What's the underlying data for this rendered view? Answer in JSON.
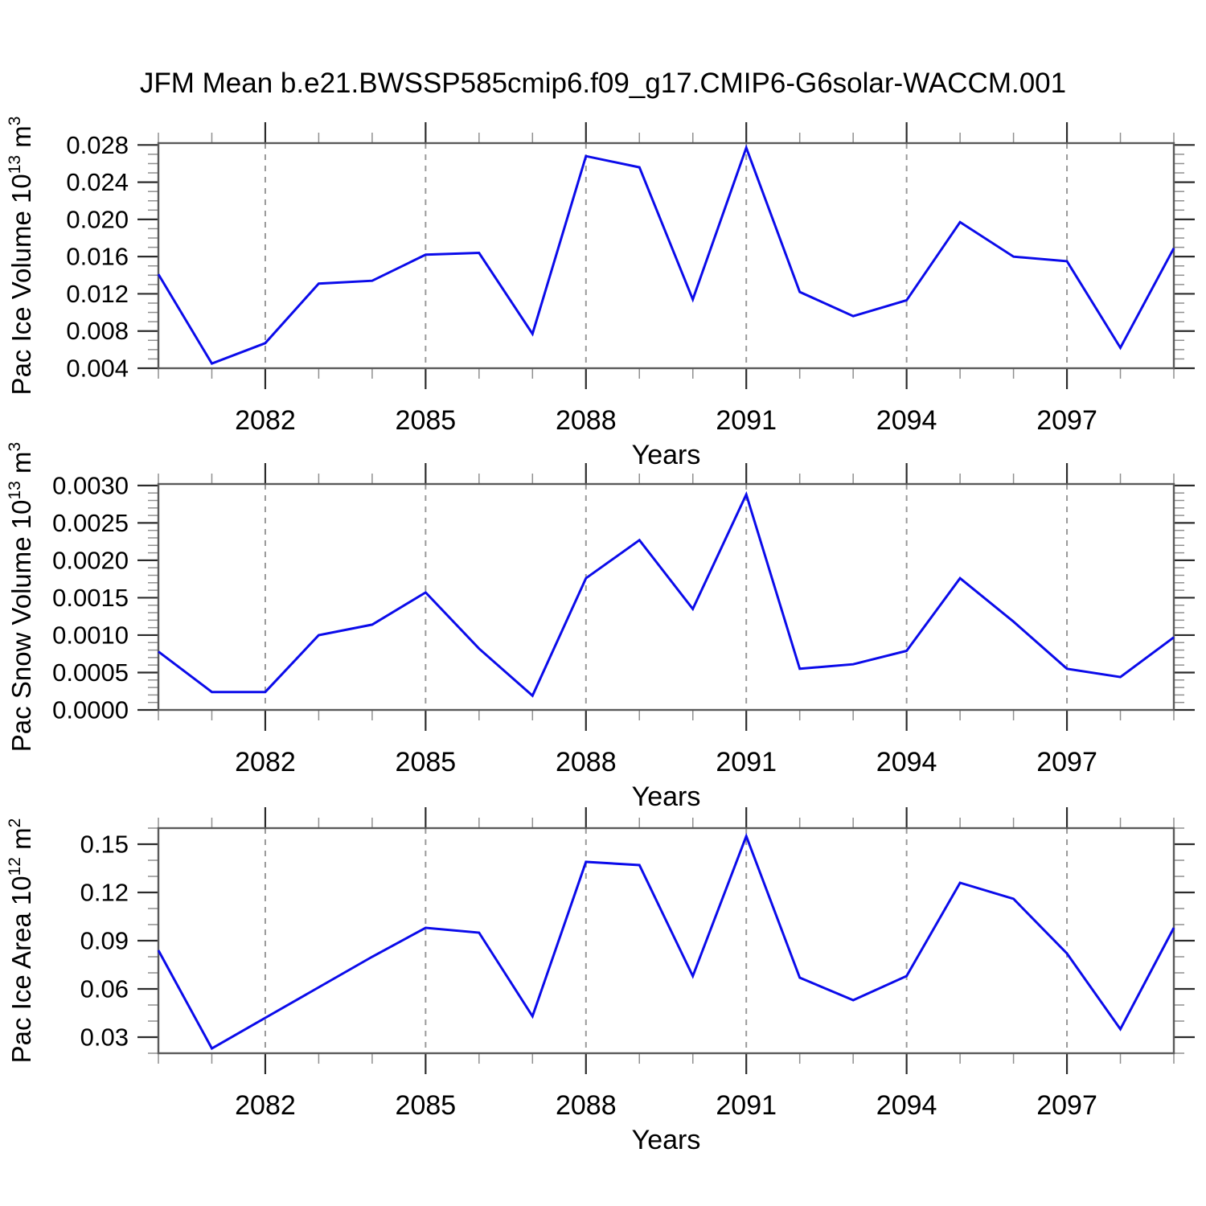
{
  "title": "JFM Mean b.e21.BWSSP585cmip6.f09_g17.CMIP6-G6solar-WACCM.001",
  "theme": {
    "line_color": "#0b0bea",
    "frame_color": "#5a5a5a",
    "major_tick_color": "#2b2b2b",
    "minor_tick_color": "#8f8f8f",
    "grid_color": "#999999",
    "text_color": "#000000",
    "background": "#ffffff"
  },
  "chart_data": {
    "type": "line",
    "x": [
      2080,
      2081,
      2082,
      2083,
      2084,
      2085,
      2086,
      2087,
      2088,
      2089,
      2090,
      2091,
      2092,
      2093,
      2094,
      2095,
      2096,
      2097,
      2098,
      2099
    ],
    "xlim": [
      2080,
      2099
    ],
    "xlabel": "Years",
    "x_major_ticks": [
      2082,
      2085,
      2088,
      2091,
      2094,
      2097
    ],
    "x_major_tick_labels": [
      "2082",
      "2085",
      "2088",
      "2091",
      "2094",
      "2097"
    ],
    "x_minor_step": 1,
    "grid": "vertical dashed gridlines at major x ticks",
    "legend": "none",
    "title": "JFM Mean b.e21.BWSSP585cmip6.f09_g17.CMIP6-G6solar-WACCM.001",
    "panels": [
      {
        "name": "pac-ice-volume",
        "ylabel": "Pac Ice Volume 10^13 m^3",
        "ylabel_segments": [
          {
            "t": "Pac Ice Volume 10"
          },
          {
            "t": "13",
            "sup": true
          },
          {
            "t": " m"
          },
          {
            "t": "3",
            "sup": true
          }
        ],
        "ylim": [
          0.004,
          0.0282
        ],
        "ytick_values": [
          0.004,
          0.008,
          0.012,
          0.016,
          0.02,
          0.024,
          0.028
        ],
        "ytick_labels": [
          "0.004",
          "0.008",
          "0.012",
          "0.016",
          "0.020",
          "0.024",
          "0.028"
        ],
        "y_minor_step": 0.001,
        "values": [
          0.0141,
          0.0045,
          0.0067,
          0.0131,
          0.0134,
          0.0162,
          0.0164,
          0.0077,
          0.0268,
          0.0256,
          0.0114,
          0.0277,
          0.0122,
          0.0096,
          0.0113,
          0.0197,
          0.016,
          0.0155,
          0.0062,
          0.0169
        ]
      },
      {
        "name": "pac-snow-volume",
        "ylabel": "Pac Snow Volume 10^13 m^3",
        "ylabel_segments": [
          {
            "t": "Pac Snow Volume 10"
          },
          {
            "t": "13",
            "sup": true
          },
          {
            "t": " m"
          },
          {
            "t": "3",
            "sup": true
          }
        ],
        "ylim": [
          0.0,
          0.00302
        ],
        "ytick_values": [
          0.0,
          0.0005,
          0.001,
          0.0015,
          0.002,
          0.0025,
          0.003
        ],
        "ytick_labels": [
          "0.0000",
          "0.0005",
          "0.0010",
          "0.0015",
          "0.0020",
          "0.0025",
          "0.0030"
        ],
        "y_minor_step": 0.0001,
        "values": [
          0.00078,
          0.00024,
          0.00024,
          0.001,
          0.00114,
          0.00157,
          0.00082,
          0.00019,
          0.00176,
          0.00227,
          0.00135,
          0.00288,
          0.00055,
          0.00061,
          0.00079,
          0.00176,
          0.00118,
          0.00055,
          0.00044,
          0.00097
        ]
      },
      {
        "name": "pac-ice-area",
        "ylabel": "Pac Ice Area 10^12 m^2",
        "ylabel_segments": [
          {
            "t": "Pac Ice Area 10"
          },
          {
            "t": "12",
            "sup": true
          },
          {
            "t": " m"
          },
          {
            "t": "2",
            "sup": true
          }
        ],
        "ylim": [
          0.02,
          0.16
        ],
        "ytick_values": [
          0.03,
          0.06,
          0.09,
          0.12,
          0.15
        ],
        "ytick_labels": [
          "0.03",
          "0.06",
          "0.09",
          "0.12",
          "0.15"
        ],
        "y_minor_step": 0.01,
        "values": [
          0.084,
          0.023,
          0.042,
          0.061,
          0.08,
          0.098,
          0.095,
          0.043,
          0.139,
          0.137,
          0.068,
          0.155,
          0.067,
          0.053,
          0.068,
          0.126,
          0.116,
          0.082,
          0.035,
          0.098
        ]
      }
    ]
  }
}
